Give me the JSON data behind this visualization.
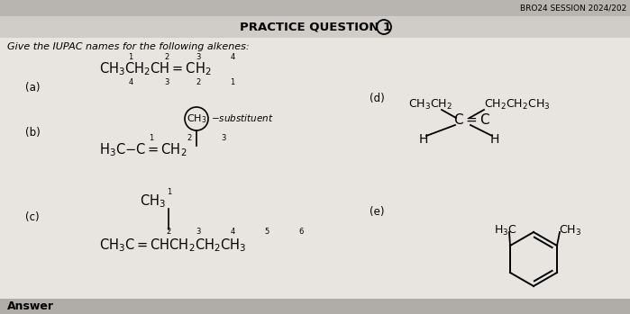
{
  "title": "PRACTICE QUESTION 1",
  "subtitle": "Give the IUPAC names for the following alkenes:",
  "header_text": "BRO24 SESSION 2024/202",
  "bg_color": "#e8e5e0",
  "header_bg": "#b8b5b0",
  "title_bg": "#d0cdc8",
  "answer_bg": "#b0ada8",
  "text_color": "#111111"
}
